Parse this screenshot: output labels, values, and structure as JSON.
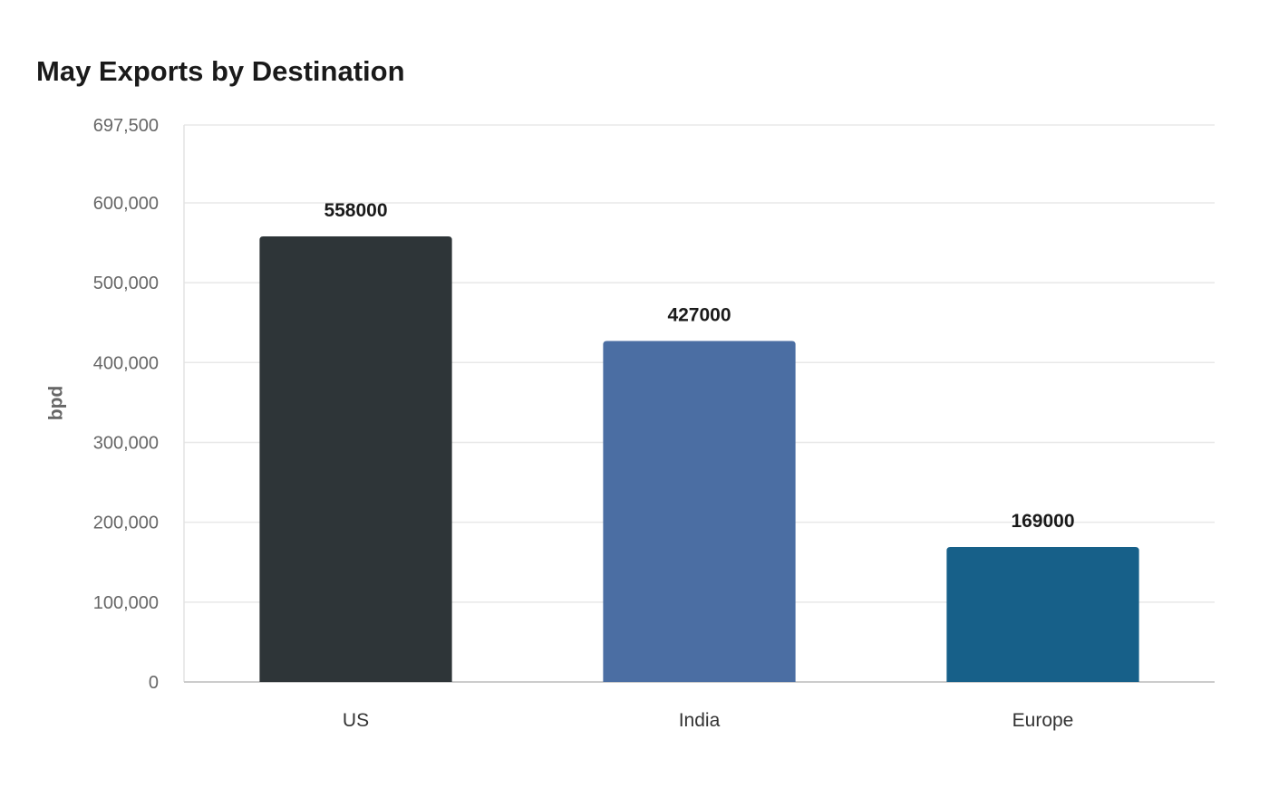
{
  "chart_data": {
    "type": "bar",
    "title": "May Exports by Destination",
    "xlabel": "",
    "ylabel": "bpd",
    "categories": [
      "US",
      "India",
      "Europe"
    ],
    "values": [
      558000,
      427000,
      169000
    ],
    "data_labels": [
      "558000",
      "427000",
      "169000"
    ],
    "colors": [
      "#2e3538",
      "#4b6ea3",
      "#176089"
    ],
    "ylim": [
      0,
      697500
    ],
    "yticks": [
      0,
      100000,
      200000,
      300000,
      400000,
      500000,
      600000,
      697500
    ],
    "ytick_labels": [
      "0",
      "100,000",
      "200,000",
      "300,000",
      "400,000",
      "500,000",
      "600,000",
      "697,500"
    ],
    "grid": true,
    "legend": "none"
  }
}
